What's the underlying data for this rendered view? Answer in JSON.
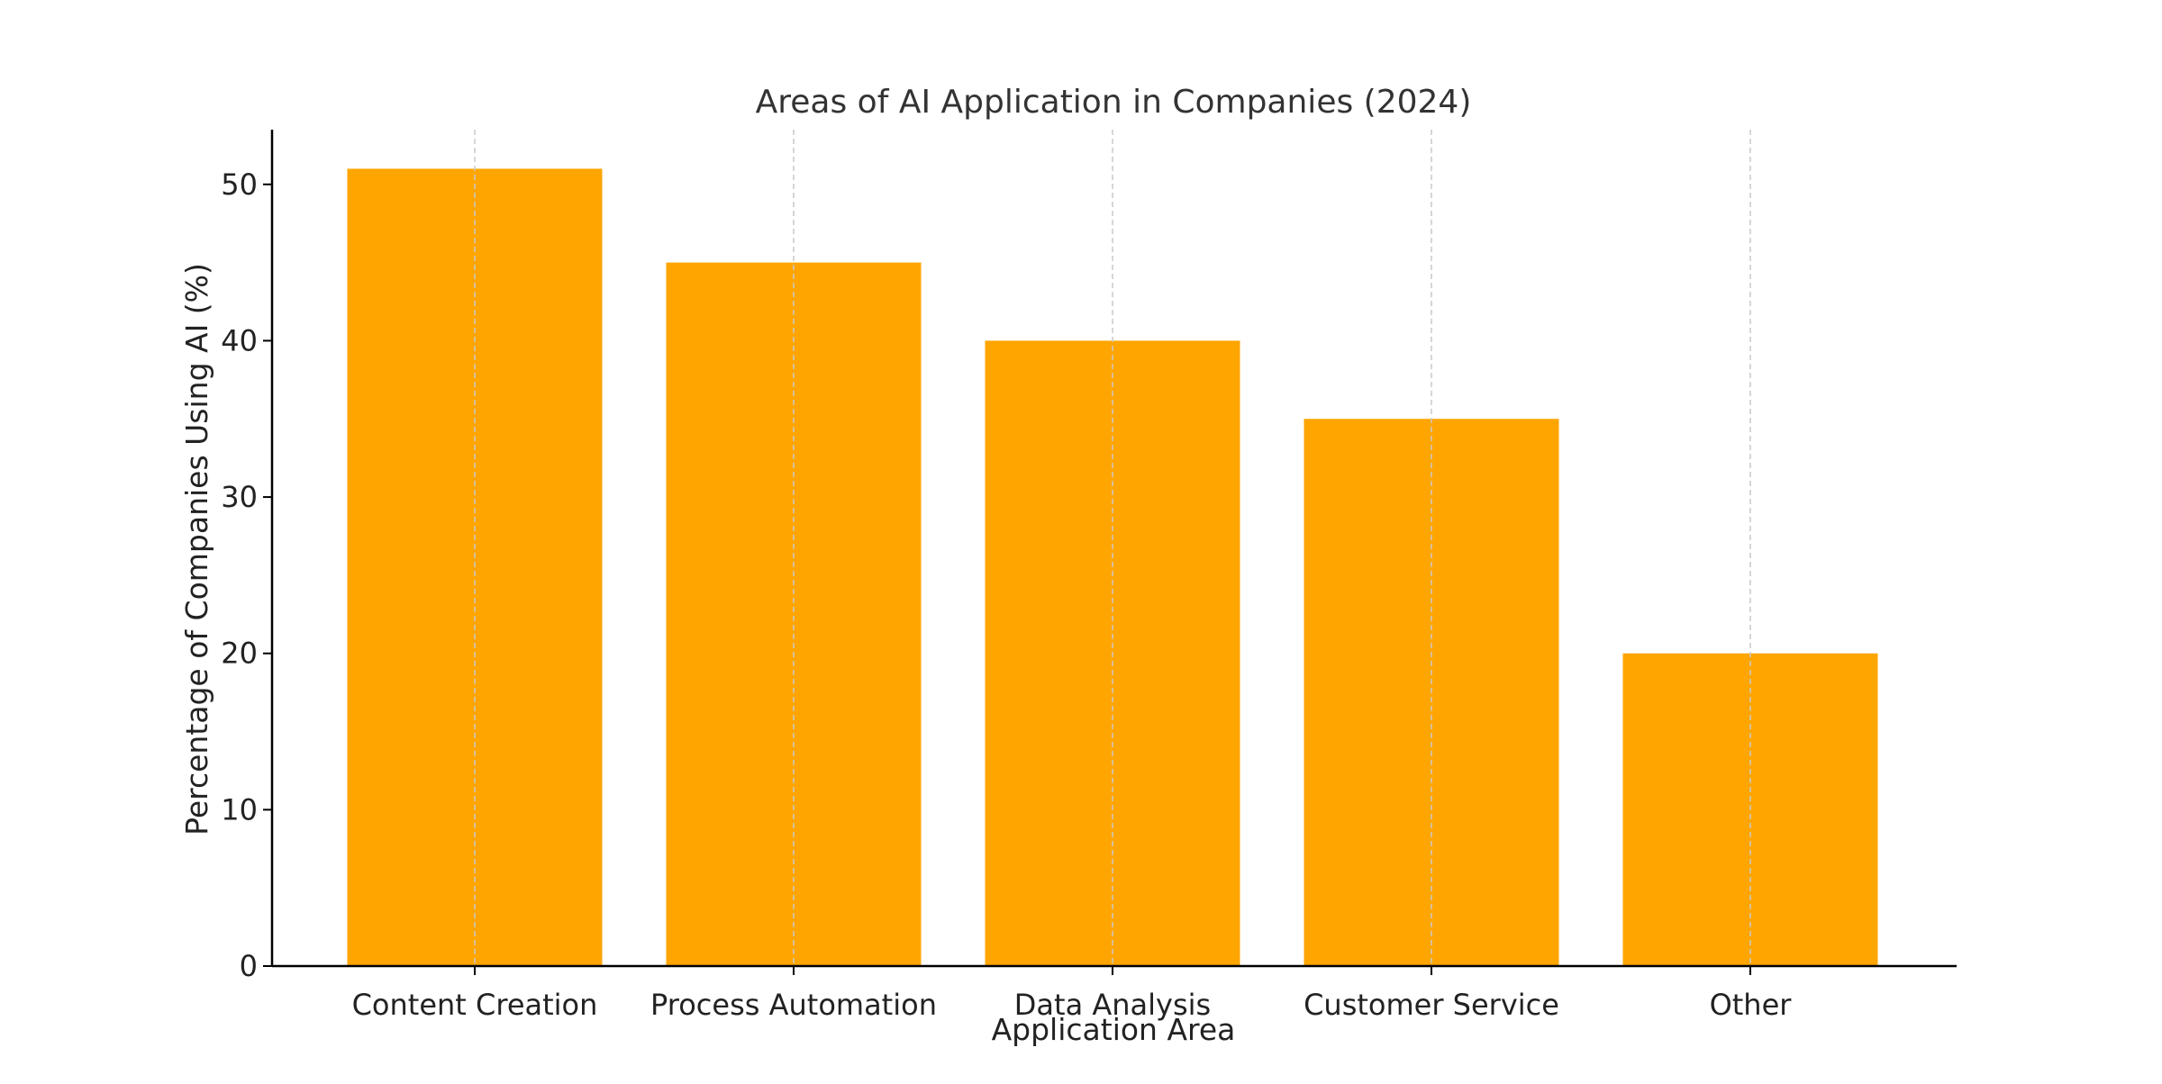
{
  "chart_data": {
    "type": "bar",
    "title": "Areas of AI Application in Companies (2024)",
    "xlabel": "Application Area",
    "ylabel": "Percentage of Companies Using AI (%)",
    "categories": [
      "Content Creation",
      "Process Automation",
      "Data Analysis",
      "Customer Service",
      "Other"
    ],
    "values": [
      51,
      45,
      40,
      35,
      20
    ],
    "ylim": [
      0,
      53.5
    ],
    "yticks": [
      0,
      10,
      20,
      30,
      40,
      50
    ],
    "grid": "vertical dashed at categories",
    "bar_color": "#FFA500",
    "grid_color": "#C8C8C8",
    "axis_color": "#000000"
  }
}
